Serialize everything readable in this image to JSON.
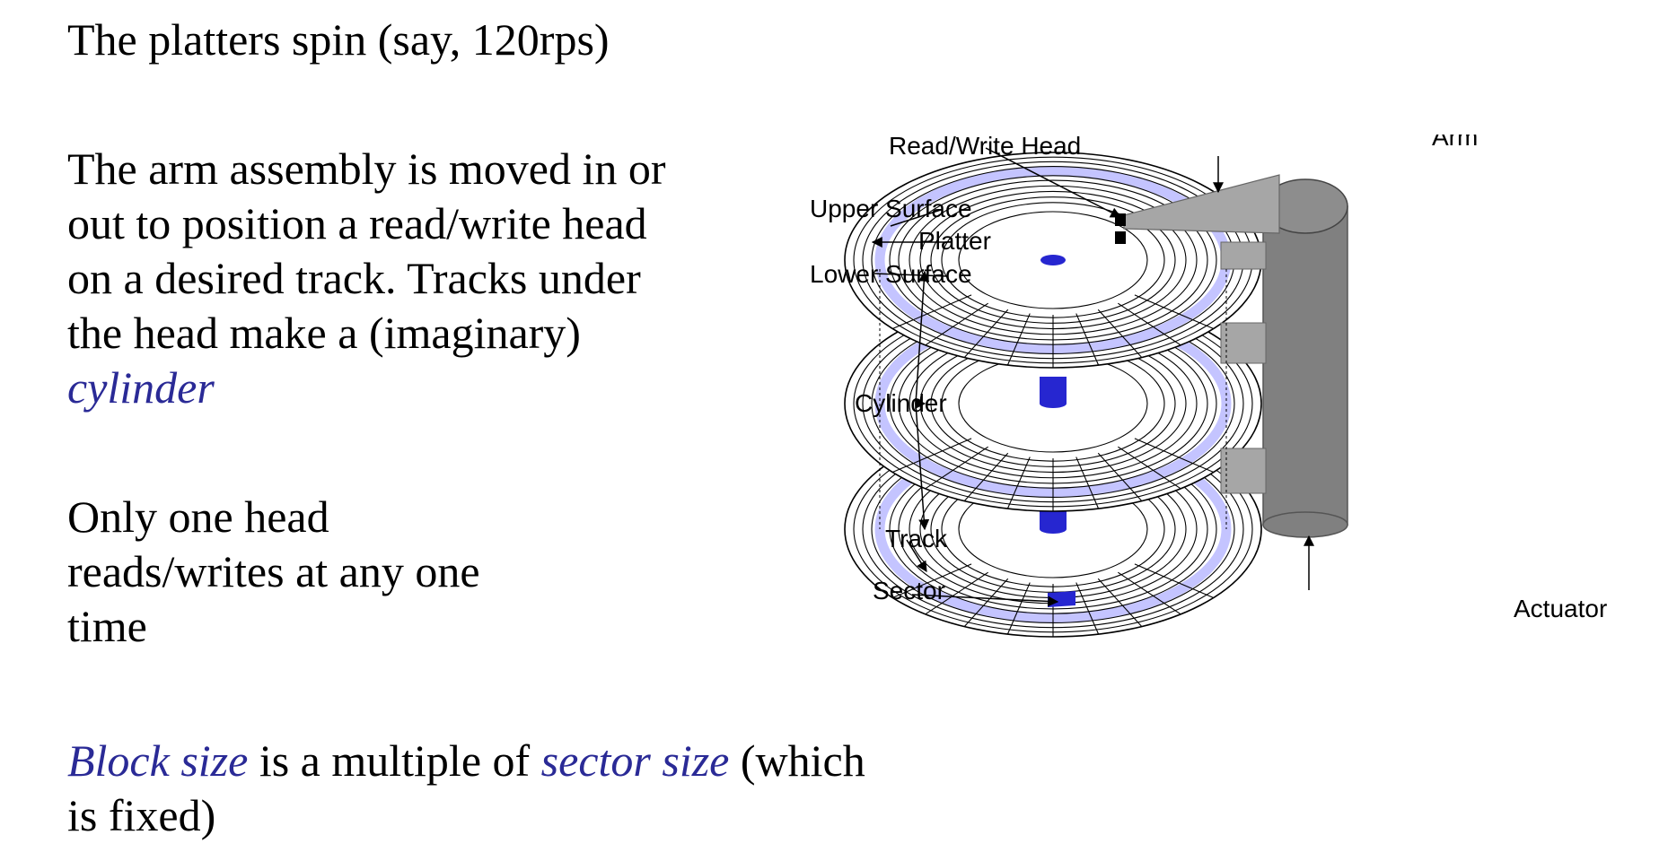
{
  "text": {
    "line1": "The platters spin (say, 120rps)",
    "para2_line1": "The arm assembly is moved in or",
    "para2_line2": "out to position  a read/write head",
    "para2_line3": "on a desired track. Tracks under",
    "para2_line4": "the head make a (imaginary)",
    "para2_term": "cylinder",
    "para3_line1": "Only one head",
    "para3_line2": "reads/writes at any one",
    "para3_line3": "time",
    "para4_term1": "Block size",
    "para4_mid": " is a multiple of ",
    "para4_term2": "sector size",
    "para4_tail": " (which",
    "para4_line2": "is fixed)"
  },
  "diagram": {
    "labels": {
      "read_write_head": "Read/Write Head",
      "arm": "Arm",
      "upper_surface": "Upper Surface",
      "platter": "Platter",
      "lower_surface": "Lower Surface",
      "cylinder": "Cylinder",
      "track": "Track",
      "sector": "Sector",
      "actuator": "Actuator"
    },
    "colors": {
      "cylinder_band": "#c4c4ff",
      "spindle": "#2626d0",
      "sector": "#2626d0",
      "arm": "#a6a6a6",
      "actuator": "#808080"
    }
  }
}
